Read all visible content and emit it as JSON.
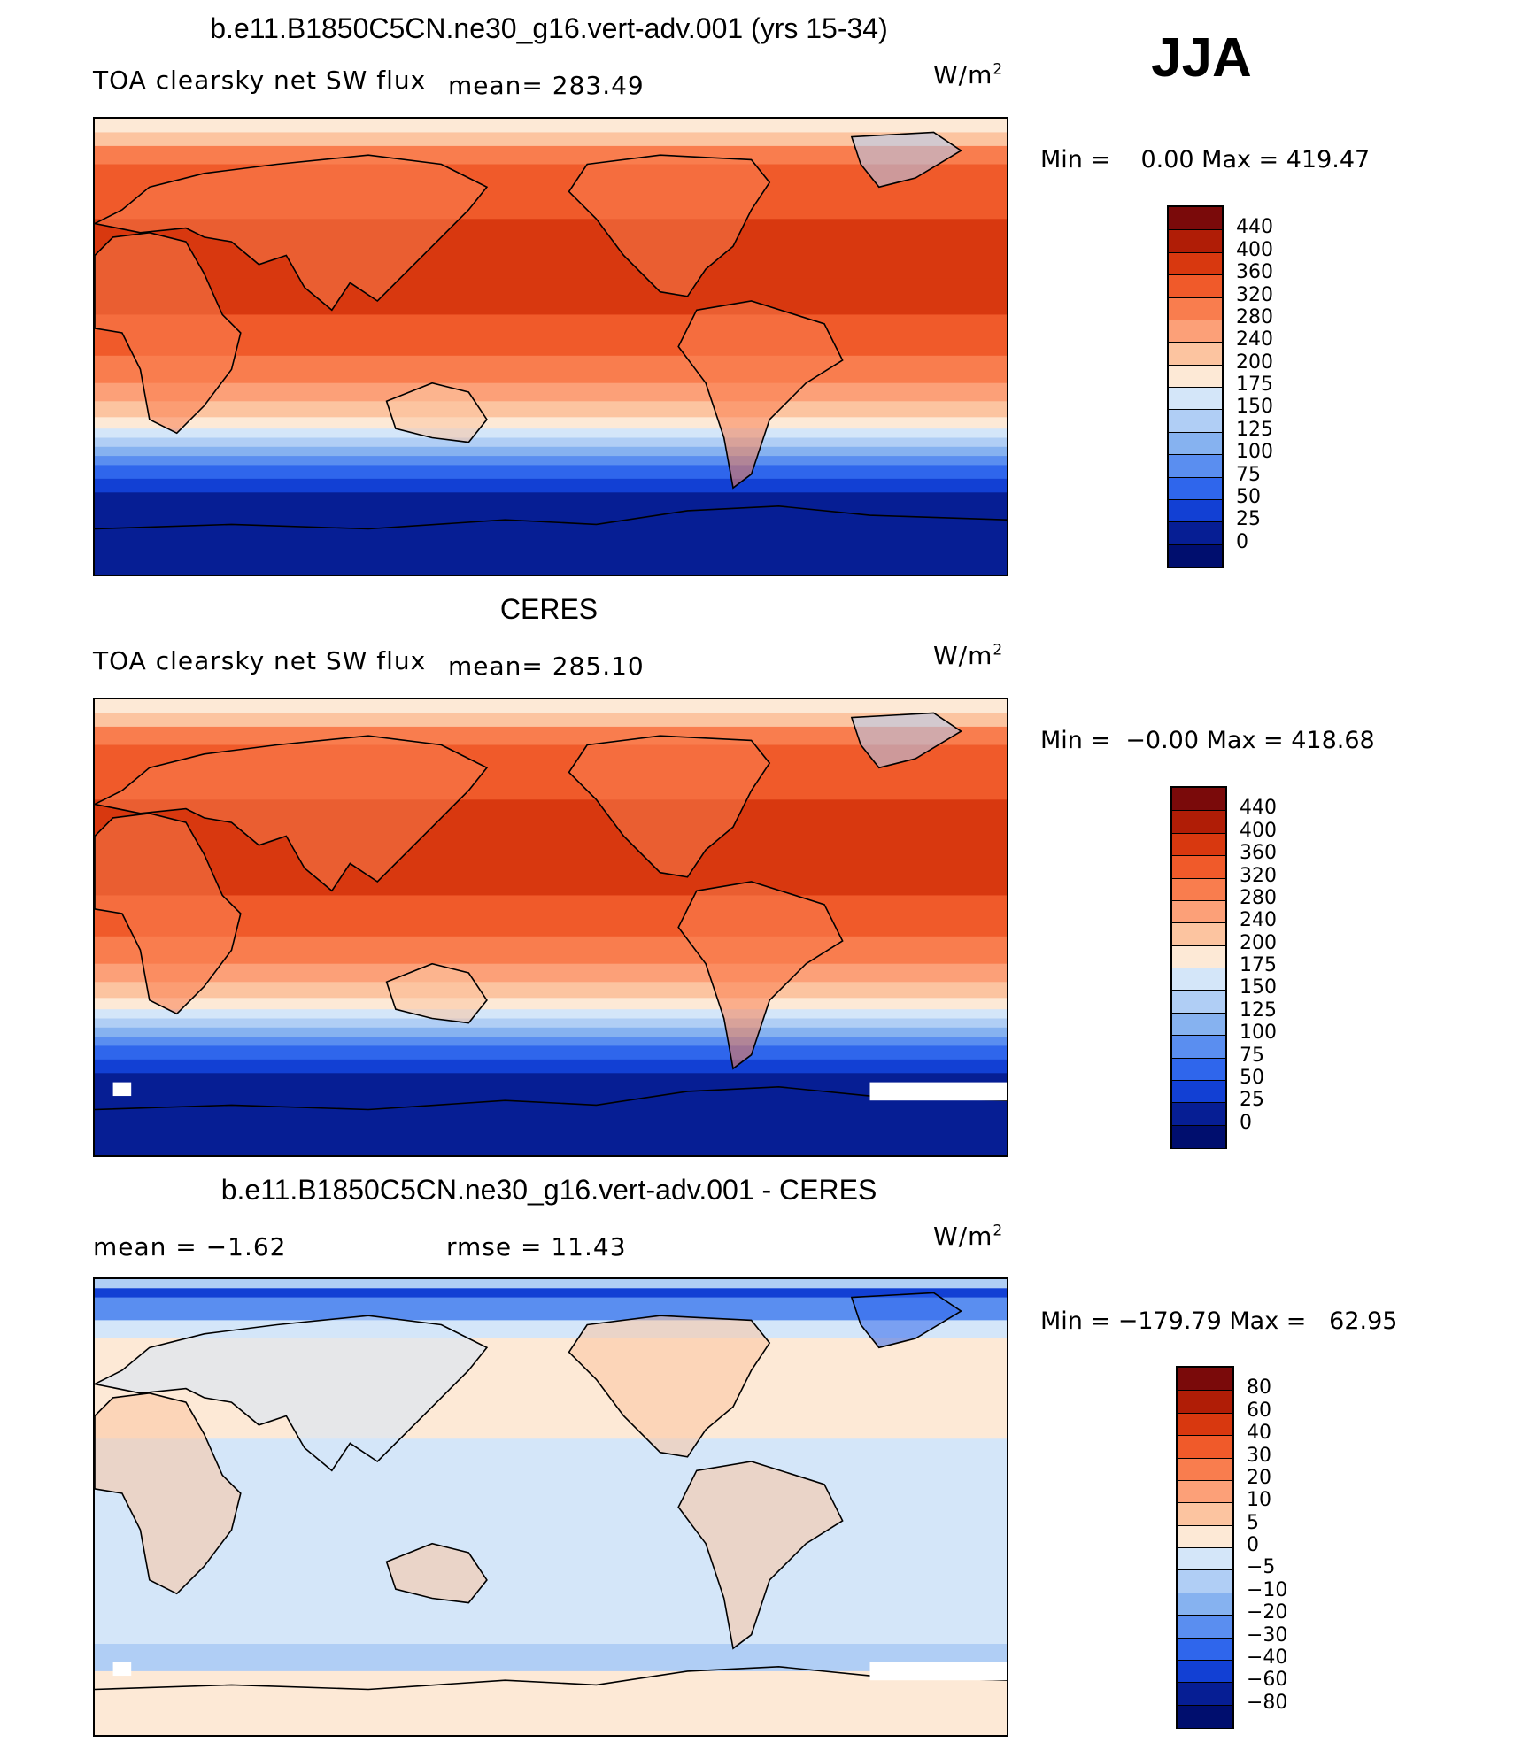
{
  "season": "JJA",
  "panels": [
    {
      "title": "b.e11.B1850C5CN.ne30_g16.vert-adv.001 (yrs 15-34)",
      "left_label": "TOA clearsky net SW flux",
      "mean_label": "mean=  283.49",
      "unit": "W/m",
      "unit_sup": "2",
      "minmax": "Min =    0.00 Max = 419.47",
      "colorbar_ticks": [
        "440",
        "400",
        "360",
        "320",
        "280",
        "240",
        "200",
        "175",
        "150",
        "125",
        "100",
        "75",
        "50",
        "25",
        "0"
      ],
      "type": "absolute"
    },
    {
      "title": "CERES",
      "left_label": "TOA clearsky net SW flux",
      "mean_label": "mean=  285.10",
      "unit": "W/m",
      "unit_sup": "2",
      "minmax": "Min =  −0.00 Max = 418.68",
      "colorbar_ticks": [
        "440",
        "400",
        "360",
        "320",
        "280",
        "240",
        "200",
        "175",
        "150",
        "125",
        "100",
        "75",
        "50",
        "25",
        "0"
      ],
      "type": "observed"
    },
    {
      "title": "b.e11.B1850C5CN.ne30_g16.vert-adv.001 - CERES",
      "left_label": "mean =   −1.62",
      "mean_label": "rmse =   11.43",
      "unit": "W/m",
      "unit_sup": "2",
      "minmax": "Min = −179.79 Max =   62.95",
      "colorbar_ticks": [
        "80",
        "60",
        "40",
        "30",
        "20",
        "10",
        "5",
        "0",
        "−5",
        "−10",
        "−20",
        "−30",
        "−40",
        "−60",
        "−80"
      ],
      "type": "difference"
    }
  ],
  "colors": {
    "absolute_scale": [
      "#7a0a0a",
      "#b01d06",
      "#d8380f",
      "#f05a2a",
      "#f97d4e",
      "#fca078",
      "#fcc4a0",
      "#fde9d6",
      "#d4e6f9",
      "#b0cef5",
      "#86b2f0",
      "#5a8ef0",
      "#2f66ec",
      "#1240d4",
      "#061e94",
      "#000e6e"
    ],
    "difference_scale": [
      "#7a0a0a",
      "#b01d06",
      "#d8380f",
      "#f05a2a",
      "#f97d4e",
      "#fca078",
      "#fcc4a0",
      "#fde9d6",
      "#d4e6f9",
      "#b0cef5",
      "#86b2f0",
      "#5a8ef0",
      "#2f66ec",
      "#1240d4",
      "#061e94",
      "#000e6e"
    ]
  }
}
